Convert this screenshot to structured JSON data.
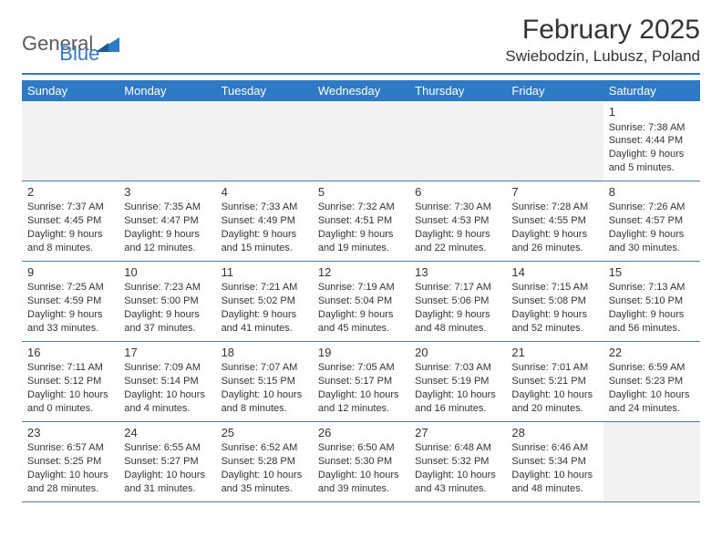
{
  "logo": {
    "general": "General",
    "blue": "Blue"
  },
  "title": "February 2025",
  "location": "Swiebodzin, Lubusz, Poland",
  "colors": {
    "accent": "#2f7ac4",
    "text": "#333333",
    "logo_gray": "#5a5a5a",
    "empty_bg": "#f2f2f2",
    "row_border": "#5a7a9a"
  },
  "day_headers": [
    "Sunday",
    "Monday",
    "Tuesday",
    "Wednesday",
    "Thursday",
    "Friday",
    "Saturday"
  ],
  "weeks": [
    [
      null,
      null,
      null,
      null,
      null,
      null,
      {
        "day": "1",
        "sunrise": "Sunrise: 7:38 AM",
        "sunset": "Sunset: 4:44 PM",
        "daylight": "Daylight: 9 hours and 5 minutes."
      }
    ],
    [
      {
        "day": "2",
        "sunrise": "Sunrise: 7:37 AM",
        "sunset": "Sunset: 4:45 PM",
        "daylight": "Daylight: 9 hours and 8 minutes."
      },
      {
        "day": "3",
        "sunrise": "Sunrise: 7:35 AM",
        "sunset": "Sunset: 4:47 PM",
        "daylight": "Daylight: 9 hours and 12 minutes."
      },
      {
        "day": "4",
        "sunrise": "Sunrise: 7:33 AM",
        "sunset": "Sunset: 4:49 PM",
        "daylight": "Daylight: 9 hours and 15 minutes."
      },
      {
        "day": "5",
        "sunrise": "Sunrise: 7:32 AM",
        "sunset": "Sunset: 4:51 PM",
        "daylight": "Daylight: 9 hours and 19 minutes."
      },
      {
        "day": "6",
        "sunrise": "Sunrise: 7:30 AM",
        "sunset": "Sunset: 4:53 PM",
        "daylight": "Daylight: 9 hours and 22 minutes."
      },
      {
        "day": "7",
        "sunrise": "Sunrise: 7:28 AM",
        "sunset": "Sunset: 4:55 PM",
        "daylight": "Daylight: 9 hours and 26 minutes."
      },
      {
        "day": "8",
        "sunrise": "Sunrise: 7:26 AM",
        "sunset": "Sunset: 4:57 PM",
        "daylight": "Daylight: 9 hours and 30 minutes."
      }
    ],
    [
      {
        "day": "9",
        "sunrise": "Sunrise: 7:25 AM",
        "sunset": "Sunset: 4:59 PM",
        "daylight": "Daylight: 9 hours and 33 minutes."
      },
      {
        "day": "10",
        "sunrise": "Sunrise: 7:23 AM",
        "sunset": "Sunset: 5:00 PM",
        "daylight": "Daylight: 9 hours and 37 minutes."
      },
      {
        "day": "11",
        "sunrise": "Sunrise: 7:21 AM",
        "sunset": "Sunset: 5:02 PM",
        "daylight": "Daylight: 9 hours and 41 minutes."
      },
      {
        "day": "12",
        "sunrise": "Sunrise: 7:19 AM",
        "sunset": "Sunset: 5:04 PM",
        "daylight": "Daylight: 9 hours and 45 minutes."
      },
      {
        "day": "13",
        "sunrise": "Sunrise: 7:17 AM",
        "sunset": "Sunset: 5:06 PM",
        "daylight": "Daylight: 9 hours and 48 minutes."
      },
      {
        "day": "14",
        "sunrise": "Sunrise: 7:15 AM",
        "sunset": "Sunset: 5:08 PM",
        "daylight": "Daylight: 9 hours and 52 minutes."
      },
      {
        "day": "15",
        "sunrise": "Sunrise: 7:13 AM",
        "sunset": "Sunset: 5:10 PM",
        "daylight": "Daylight: 9 hours and 56 minutes."
      }
    ],
    [
      {
        "day": "16",
        "sunrise": "Sunrise: 7:11 AM",
        "sunset": "Sunset: 5:12 PM",
        "daylight": "Daylight: 10 hours and 0 minutes."
      },
      {
        "day": "17",
        "sunrise": "Sunrise: 7:09 AM",
        "sunset": "Sunset: 5:14 PM",
        "daylight": "Daylight: 10 hours and 4 minutes."
      },
      {
        "day": "18",
        "sunrise": "Sunrise: 7:07 AM",
        "sunset": "Sunset: 5:15 PM",
        "daylight": "Daylight: 10 hours and 8 minutes."
      },
      {
        "day": "19",
        "sunrise": "Sunrise: 7:05 AM",
        "sunset": "Sunset: 5:17 PM",
        "daylight": "Daylight: 10 hours and 12 minutes."
      },
      {
        "day": "20",
        "sunrise": "Sunrise: 7:03 AM",
        "sunset": "Sunset: 5:19 PM",
        "daylight": "Daylight: 10 hours and 16 minutes."
      },
      {
        "day": "21",
        "sunrise": "Sunrise: 7:01 AM",
        "sunset": "Sunset: 5:21 PM",
        "daylight": "Daylight: 10 hours and 20 minutes."
      },
      {
        "day": "22",
        "sunrise": "Sunrise: 6:59 AM",
        "sunset": "Sunset: 5:23 PM",
        "daylight": "Daylight: 10 hours and 24 minutes."
      }
    ],
    [
      {
        "day": "23",
        "sunrise": "Sunrise: 6:57 AM",
        "sunset": "Sunset: 5:25 PM",
        "daylight": "Daylight: 10 hours and 28 minutes."
      },
      {
        "day": "24",
        "sunrise": "Sunrise: 6:55 AM",
        "sunset": "Sunset: 5:27 PM",
        "daylight": "Daylight: 10 hours and 31 minutes."
      },
      {
        "day": "25",
        "sunrise": "Sunrise: 6:52 AM",
        "sunset": "Sunset: 5:28 PM",
        "daylight": "Daylight: 10 hours and 35 minutes."
      },
      {
        "day": "26",
        "sunrise": "Sunrise: 6:50 AM",
        "sunset": "Sunset: 5:30 PM",
        "daylight": "Daylight: 10 hours and 39 minutes."
      },
      {
        "day": "27",
        "sunrise": "Sunrise: 6:48 AM",
        "sunset": "Sunset: 5:32 PM",
        "daylight": "Daylight: 10 hours and 43 minutes."
      },
      {
        "day": "28",
        "sunrise": "Sunrise: 6:46 AM",
        "sunset": "Sunset: 5:34 PM",
        "daylight": "Daylight: 10 hours and 48 minutes."
      },
      null
    ]
  ]
}
